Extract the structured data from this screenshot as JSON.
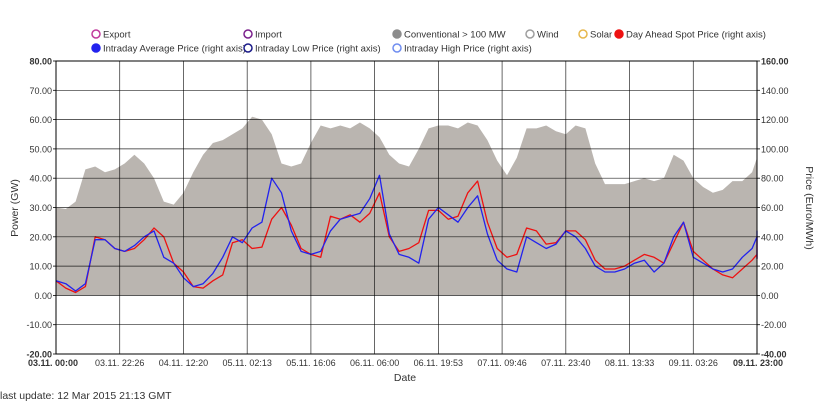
{
  "footer": {
    "last_update": "last update: 12 Mar 2015 21:13 GMT"
  },
  "chart_data": {
    "type": "area",
    "xlabel": "Date",
    "ylabel_left": "Power (GW)",
    "ylabel_right": "Price (Euro/MWh)",
    "y_left_range": [
      -20,
      80
    ],
    "y_right_range": [
      -40,
      160
    ],
    "y_left_ticks": [
      "-20.00",
      "-10.00",
      "0.00",
      "10.00",
      "20.00",
      "30.00",
      "40.00",
      "50.00",
      "60.00",
      "70.00",
      "80.00"
    ],
    "y_right_ticks": [
      "-40.00",
      "-20.00",
      "0.00",
      "20.00",
      "40.00",
      "60.00",
      "80.00",
      "100.00",
      "120.00",
      "140.00",
      "160.00"
    ],
    "x_range_hours": [
      0,
      143
    ],
    "x_ticks": [
      {
        "label": "03.11. 00:00",
        "bold": true
      },
      {
        "label": "03.11. 22:26",
        "bold": false
      },
      {
        "label": "04.11. 12:20",
        "bold": false
      },
      {
        "label": "05.11. 02:13",
        "bold": false
      },
      {
        "label": "05.11. 16:06",
        "bold": false
      },
      {
        "label": "06.11. 06:00",
        "bold": false
      },
      {
        "label": "06.11. 19:53",
        "bold": false
      },
      {
        "label": "07.11. 09:46",
        "bold": false
      },
      {
        "label": "07.11. 23:40",
        "bold": false
      },
      {
        "label": "08.11. 13:33",
        "bold": false
      },
      {
        "label": "09.11. 03:26",
        "bold": false
      },
      {
        "label": "09.11. 23:00",
        "bold": true
      }
    ],
    "grid": true,
    "legend_position": "top",
    "legend": [
      {
        "name": "Export",
        "color": "#c0399b",
        "filled": false
      },
      {
        "name": "Import",
        "color": "#7a1f8c",
        "filled": false
      },
      {
        "name": "Conventional > 100 MW",
        "color": "#8c8c8c",
        "filled": true
      },
      {
        "name": "Wind",
        "color": "#9e9e9e",
        "filled": false
      },
      {
        "name": "Solar",
        "color": "#e6b74c",
        "filled": false
      },
      {
        "name": "Day Ahead Spot Price (right axis)",
        "color": "#ee1111",
        "filled": true
      },
      {
        "name": "Intraday Average Price (right axis)",
        "color": "#2222ee",
        "filled": true
      },
      {
        "name": "Intraday Low Price (right axis)",
        "color": "#1a1a88",
        "filled": false
      },
      {
        "name": "Intraday High Price (right axis)",
        "color": "#6f8df0",
        "filled": false
      }
    ],
    "series": [
      {
        "name": "Conventional > 100 MW",
        "axis": "left",
        "color": "#bab5b0",
        "type": "area",
        "points": [
          [
            0,
            30
          ],
          [
            2,
            29.5
          ],
          [
            4,
            32
          ],
          [
            6,
            43
          ],
          [
            8,
            44
          ],
          [
            10,
            42
          ],
          [
            12,
            43
          ],
          [
            14,
            45
          ],
          [
            16,
            48
          ],
          [
            18,
            45
          ],
          [
            20,
            40
          ],
          [
            22,
            32
          ],
          [
            24,
            31
          ],
          [
            26,
            35
          ],
          [
            28,
            42
          ],
          [
            30,
            48
          ],
          [
            32,
            52
          ],
          [
            34,
            53
          ],
          [
            36,
            55
          ],
          [
            38,
            57
          ],
          [
            40,
            61
          ],
          [
            42,
            60
          ],
          [
            44,
            55
          ],
          [
            46,
            45
          ],
          [
            48,
            44
          ],
          [
            50,
            45
          ],
          [
            52,
            52
          ],
          [
            54,
            58
          ],
          [
            56,
            57
          ],
          [
            58,
            58
          ],
          [
            60,
            57
          ],
          [
            62,
            59
          ],
          [
            64,
            57
          ],
          [
            66,
            54
          ],
          [
            68,
            48
          ],
          [
            70,
            45
          ],
          [
            72,
            44
          ],
          [
            74,
            50
          ],
          [
            76,
            57
          ],
          [
            78,
            58
          ],
          [
            80,
            58
          ],
          [
            82,
            57
          ],
          [
            84,
            59
          ],
          [
            86,
            58
          ],
          [
            88,
            53
          ],
          [
            90,
            46
          ],
          [
            92,
            41
          ],
          [
            94,
            47
          ],
          [
            96,
            57
          ],
          [
            98,
            57
          ],
          [
            100,
            58
          ],
          [
            102,
            56
          ],
          [
            104,
            55
          ],
          [
            106,
            58
          ],
          [
            108,
            57
          ],
          [
            110,
            45
          ],
          [
            112,
            38
          ],
          [
            114,
            38
          ],
          [
            116,
            38
          ],
          [
            118,
            39
          ],
          [
            120,
            40
          ],
          [
            122,
            39
          ],
          [
            124,
            40
          ],
          [
            126,
            48
          ],
          [
            128,
            46
          ],
          [
            130,
            40
          ],
          [
            132,
            37
          ],
          [
            134,
            35
          ],
          [
            136,
            36
          ],
          [
            138,
            39
          ],
          [
            140,
            39
          ],
          [
            142,
            42
          ],
          [
            144,
            47
          ],
          [
            146,
            45
          ],
          [
            148,
            42
          ],
          [
            150,
            42
          ]
        ]
      },
      {
        "name": "Day Ahead Spot Price (right axis)",
        "axis": "right",
        "color": "#ee1111",
        "type": "line",
        "points": [
          [
            0,
            10
          ],
          [
            2,
            5
          ],
          [
            4,
            2
          ],
          [
            6,
            6
          ],
          [
            8,
            40
          ],
          [
            10,
            38
          ],
          [
            12,
            32
          ],
          [
            14,
            30
          ],
          [
            16,
            32
          ],
          [
            18,
            38
          ],
          [
            20,
            46
          ],
          [
            22,
            40
          ],
          [
            24,
            22
          ],
          [
            26,
            16
          ],
          [
            28,
            6
          ],
          [
            30,
            5
          ],
          [
            32,
            10
          ],
          [
            34,
            14
          ],
          [
            36,
            36
          ],
          [
            38,
            38
          ],
          [
            40,
            32
          ],
          [
            42,
            33
          ],
          [
            44,
            52
          ],
          [
            46,
            60
          ],
          [
            48,
            48
          ],
          [
            50,
            32
          ],
          [
            52,
            28
          ],
          [
            54,
            26
          ],
          [
            56,
            54
          ],
          [
            58,
            52
          ],
          [
            60,
            55
          ],
          [
            62,
            50
          ],
          [
            64,
            56
          ],
          [
            66,
            70
          ],
          [
            68,
            40
          ],
          [
            70,
            30
          ],
          [
            72,
            32
          ],
          [
            74,
            36
          ],
          [
            76,
            58
          ],
          [
            78,
            58
          ],
          [
            80,
            52
          ],
          [
            82,
            54
          ],
          [
            84,
            70
          ],
          [
            86,
            78
          ],
          [
            88,
            50
          ],
          [
            90,
            32
          ],
          [
            92,
            26
          ],
          [
            94,
            28
          ],
          [
            96,
            46
          ],
          [
            98,
            44
          ],
          [
            100,
            35
          ],
          [
            102,
            36
          ],
          [
            104,
            44
          ],
          [
            106,
            44
          ],
          [
            108,
            38
          ],
          [
            110,
            24
          ],
          [
            112,
            18
          ],
          [
            114,
            18
          ],
          [
            116,
            20
          ],
          [
            118,
            24
          ],
          [
            120,
            28
          ],
          [
            122,
            26
          ],
          [
            124,
            22
          ],
          [
            126,
            36
          ],
          [
            128,
            50
          ],
          [
            130,
            30
          ],
          [
            132,
            24
          ],
          [
            134,
            18
          ],
          [
            136,
            14
          ],
          [
            138,
            12
          ],
          [
            140,
            18
          ],
          [
            142,
            24
          ],
          [
            144,
            28
          ],
          [
            146,
            40
          ],
          [
            148,
            32
          ],
          [
            150,
            25
          ]
        ]
      },
      {
        "name": "Intraday Average Price (right axis)",
        "axis": "right",
        "color": "#2222ee",
        "type": "line",
        "points": [
          [
            0,
            10
          ],
          [
            2,
            8
          ],
          [
            4,
            3
          ],
          [
            6,
            8
          ],
          [
            8,
            38
          ],
          [
            10,
            38
          ],
          [
            12,
            32
          ],
          [
            14,
            30
          ],
          [
            16,
            34
          ],
          [
            18,
            40
          ],
          [
            20,
            44
          ],
          [
            22,
            26
          ],
          [
            24,
            22
          ],
          [
            26,
            12
          ],
          [
            28,
            6
          ],
          [
            30,
            8
          ],
          [
            32,
            15
          ],
          [
            34,
            26
          ],
          [
            36,
            40
          ],
          [
            38,
            36
          ],
          [
            40,
            46
          ],
          [
            42,
            50
          ],
          [
            44,
            80
          ],
          [
            46,
            70
          ],
          [
            48,
            44
          ],
          [
            50,
            30
          ],
          [
            52,
            28
          ],
          [
            54,
            30
          ],
          [
            56,
            44
          ],
          [
            58,
            52
          ],
          [
            60,
            54
          ],
          [
            62,
            56
          ],
          [
            64,
            66
          ],
          [
            66,
            82
          ],
          [
            68,
            42
          ],
          [
            70,
            28
          ],
          [
            72,
            26
          ],
          [
            74,
            22
          ],
          [
            76,
            52
          ],
          [
            78,
            60
          ],
          [
            80,
            55
          ],
          [
            82,
            50
          ],
          [
            84,
            60
          ],
          [
            86,
            68
          ],
          [
            88,
            42
          ],
          [
            90,
            24
          ],
          [
            92,
            18
          ],
          [
            94,
            16
          ],
          [
            96,
            40
          ],
          [
            98,
            36
          ],
          [
            100,
            32
          ],
          [
            102,
            35
          ],
          [
            104,
            44
          ],
          [
            106,
            40
          ],
          [
            108,
            32
          ],
          [
            110,
            20
          ],
          [
            112,
            16
          ],
          [
            114,
            16
          ],
          [
            116,
            18
          ],
          [
            118,
            22
          ],
          [
            120,
            24
          ],
          [
            122,
            16
          ],
          [
            124,
            22
          ],
          [
            126,
            40
          ],
          [
            128,
            50
          ],
          [
            130,
            26
          ],
          [
            132,
            22
          ],
          [
            134,
            18
          ],
          [
            136,
            16
          ],
          [
            138,
            18
          ],
          [
            140,
            26
          ],
          [
            142,
            32
          ],
          [
            144,
            40
          ],
          [
            146,
            44
          ],
          [
            148,
            30
          ],
          [
            150,
            25
          ]
        ]
      }
    ]
  }
}
